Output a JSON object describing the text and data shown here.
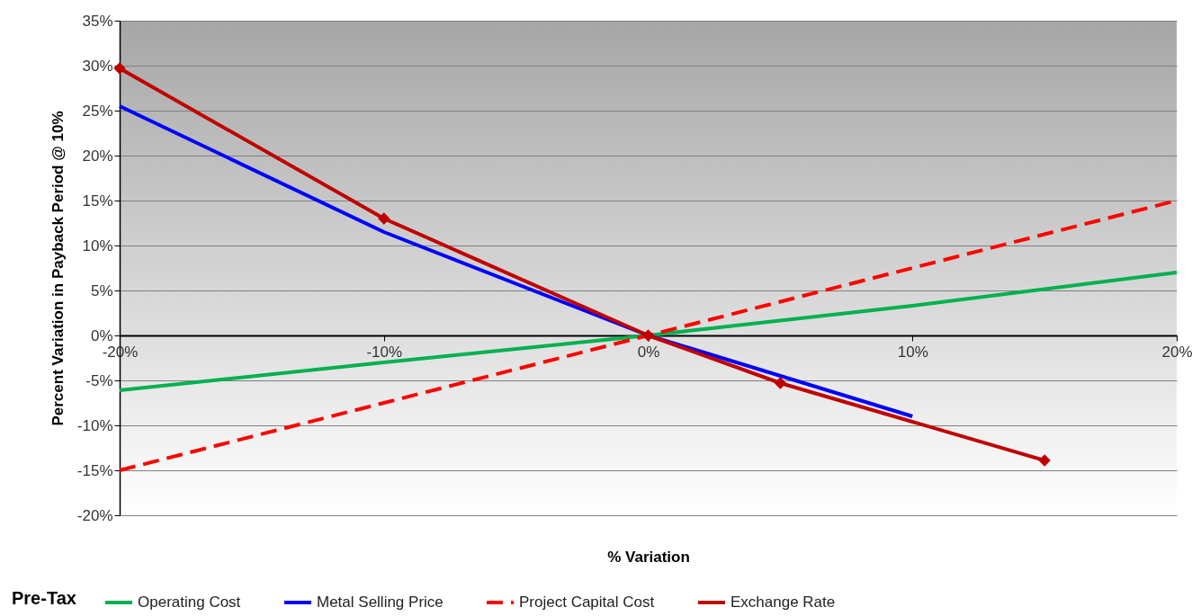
{
  "chart_data": {
    "type": "line",
    "xlabel": "% Variation",
    "ylabel": "Percent Variation in Payback Period @ 10%",
    "legend_title": "Pre-Tax",
    "legend": "bottom",
    "grid": "y",
    "xlim": [
      -20,
      20
    ],
    "xticks": [
      {
        "value": -20,
        "label": "-20%"
      },
      {
        "value": -10,
        "label": "-10%"
      },
      {
        "value": 0,
        "label": "0%"
      },
      {
        "value": 10,
        "label": "10%"
      },
      {
        "value": 20,
        "label": "20%"
      }
    ],
    "ylim": [
      -20,
      35
    ],
    "yticks": [
      {
        "value": -20,
        "label": "-20%"
      },
      {
        "value": -15,
        "label": "-15%"
      },
      {
        "value": -10,
        "label": "-10%"
      },
      {
        "value": -5,
        "label": "-5%"
      },
      {
        "value": 0,
        "label": "0%"
      },
      {
        "value": 5,
        "label": "5%"
      },
      {
        "value": 10,
        "label": "10%"
      },
      {
        "value": 15,
        "label": "15%"
      },
      {
        "value": 20,
        "label": "20%"
      },
      {
        "value": 25,
        "label": "25%"
      },
      {
        "value": 30,
        "label": "30%"
      },
      {
        "value": 35,
        "label": "35%"
      }
    ],
    "series": [
      {
        "name": "Operating Cost",
        "color": "#00b050",
        "x": [
          -20,
          -10,
          0,
          10,
          20
        ],
        "values": [
          -6.1,
          -3,
          0,
          3.3,
          7
        ]
      },
      {
        "name": "Metal Selling Price",
        "color": "#0000ff",
        "x": [
          -20,
          -10,
          0,
          10
        ],
        "values": [
          25.5,
          11.5,
          0,
          -9
        ]
      },
      {
        "name": "Project Capital Cost",
        "color": "#ff0000",
        "line_style": "dashed",
        "x": [
          -20,
          -10,
          0,
          10,
          20
        ],
        "values": [
          -15,
          -7.5,
          0,
          7.5,
          15
        ]
      },
      {
        "name": "Exchange Rate",
        "color": "#c00000",
        "marker": "diamond",
        "x": [
          -20,
          -10,
          0,
          5,
          15
        ],
        "values": [
          29.7,
          13,
          0,
          -5.3,
          -13.9
        ]
      }
    ]
  }
}
